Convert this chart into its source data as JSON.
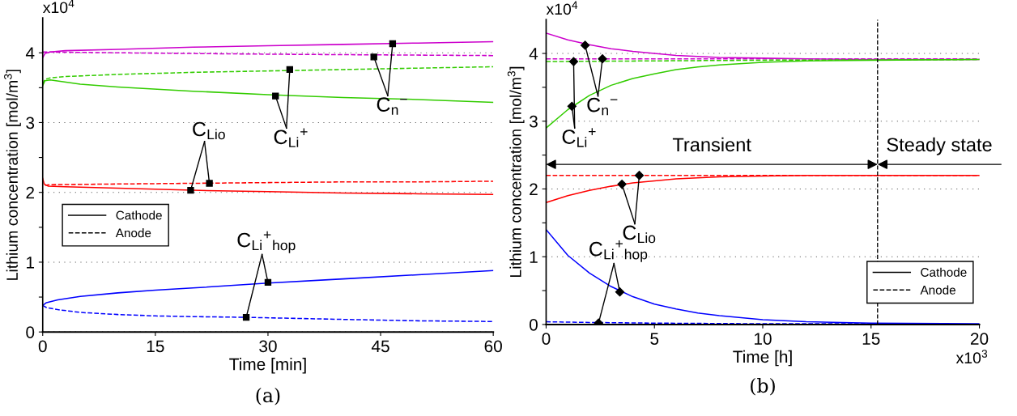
{
  "chart_data": [
    {
      "type": "line",
      "title": "(a)",
      "xlabel": "Time [min]",
      "ylabel": "Lithium concentration [mol/m$^{3}$]",
      "xlim": [
        0,
        60
      ],
      "xticks": [
        0,
        15,
        30,
        45,
        60
      ],
      "ylim": [
        0,
        4.5
      ],
      "yticks": [
        0,
        {
          "value": 0.5,
          "label": null
        },
        1,
        {
          "value": 1.5,
          "label": null
        },
        2,
        {
          "value": 2.5,
          "label": null
        },
        3,
        {
          "value": 3.5,
          "label": null
        },
        4
      ],
      "grid": "y",
      "legend": "center left",
      "annotations": [
        "x10$^{4}$",
        {
          "text": "C$_{Lio}$",
          "x": 19.7,
          "y": 2.03
        },
        {
          "text": "C$_{Li}$$^{+}$",
          "x": 31.0,
          "y": 3.38
        },
        {
          "text": "C$_{n}$$^{−}$",
          "x": 44.1,
          "y": 3.94
        },
        {
          "text": "C$_{Li}$$^{+}$$_{hop}$",
          "x": 27.1,
          "y": 0.21
        }
      ],
      "series": [
        {
          "color": "#cc00cc",
          "line_style": "solid",
          "x": [
            0,
            0.3,
            1,
            3,
            10,
            20,
            30,
            40,
            50,
            60
          ],
          "values": [
            3.93,
            3.99,
            4.01,
            4.03,
            4.05,
            4.08,
            4.1,
            4.12,
            4.14,
            4.16
          ]
        },
        {
          "color": "#cc00cc",
          "line_style": "dashed",
          "x": [
            0,
            1,
            10,
            30,
            60
          ],
          "values": [
            4.01,
            4.01,
            4.0,
            3.98,
            3.96
          ]
        },
        {
          "color": "#33cc00",
          "line_style": "dashed",
          "x": [
            0,
            0.3,
            1,
            3,
            10,
            20,
            30,
            40,
            50,
            60
          ],
          "values": [
            3.55,
            3.62,
            3.64,
            3.66,
            3.69,
            3.72,
            3.74,
            3.76,
            3.78,
            3.8
          ]
        },
        {
          "color": "#33cc00",
          "line_style": "solid",
          "x": [
            0,
            0.3,
            1,
            5,
            10,
            20,
            30,
            40,
            50,
            60
          ],
          "values": [
            3.53,
            3.6,
            3.61,
            3.55,
            3.51,
            3.45,
            3.4,
            3.36,
            3.33,
            3.29
          ]
        },
        {
          "color": "#ff0000",
          "line_style": "solid",
          "x": [
            0,
            0.2,
            0.7,
            3,
            10,
            20,
            30,
            40,
            50,
            60
          ],
          "values": [
            2.2,
            2.12,
            2.09,
            2.08,
            2.06,
            2.03,
            2.01,
            1.99,
            1.98,
            1.97
          ]
        },
        {
          "color": "#ff0000",
          "line_style": "dashed",
          "x": [
            0.3,
            1,
            10,
            20,
            30,
            40,
            50,
            60
          ],
          "values": [
            2.1,
            2.11,
            2.12,
            2.13,
            2.14,
            2.15,
            2.15,
            2.16
          ]
        },
        {
          "color": "#0000ff",
          "line_style": "solid",
          "x": [
            0,
            0.5,
            2,
            5,
            10,
            15,
            20,
            30,
            40,
            50,
            60
          ],
          "values": [
            0.38,
            0.42,
            0.46,
            0.51,
            0.56,
            0.6,
            0.63,
            0.7,
            0.76,
            0.82,
            0.88
          ]
        },
        {
          "color": "#0000ff",
          "line_style": "dashed",
          "x": [
            0,
            0.5,
            2,
            5,
            10,
            15,
            20,
            27,
            40,
            50,
            60
          ],
          "values": [
            0.38,
            0.35,
            0.32,
            0.28,
            0.25,
            0.23,
            0.22,
            0.21,
            0.18,
            0.16,
            0.15
          ]
        },
        {
          "type": "scatter",
          "color": "#000000",
          "marker": "square",
          "x": [
            19.7,
            22.2
          ],
          "values": [
            2.03,
            2.13
          ]
        },
        {
          "type": "scatter",
          "color": "#000000",
          "marker": "square",
          "x": [
            31.0,
            32.9
          ],
          "values": [
            3.38,
            3.76
          ]
        },
        {
          "type": "scatter",
          "color": "#000000",
          "marker": "square",
          "x": [
            44.1,
            46.6
          ],
          "values": [
            3.94,
            4.13
          ]
        },
        {
          "type": "scatter",
          "color": "#000000",
          "marker": "square",
          "x": [
            27.1,
            30.0
          ],
          "values": [
            0.21,
            0.71
          ]
        },
        {
          "name": "Cathode",
          "color": "#000000",
          "line_style": "solid"
        },
        {
          "name": "Anode",
          "color": "#000000",
          "line_style": "dashed"
        }
      ]
    },
    {
      "type": "line",
      "title": "(b)",
      "xlabel": "Time [h]",
      "ylabel": "Lithium concentration [mol/m$^{3}$]",
      "xlim": [
        0,
        20
      ],
      "xticks": [
        0,
        5,
        10,
        15,
        20
      ],
      "ylim": [
        0,
        4.5
      ],
      "yticks": [
        0,
        {
          "value": 0.5,
          "label": null
        },
        1,
        {
          "value": 1.5,
          "label": null
        },
        2,
        {
          "value": 2.5,
          "label": null
        },
        3,
        {
          "value": 3.5,
          "label": null
        },
        4
      ],
      "grid": "y",
      "legend": "lower right",
      "ref_lines": [
        {
          "axis": "x",
          "value": 15.3,
          "color": "#000000",
          "line_style": "dashed"
        }
      ],
      "annotations": [
        "x10$^{4}$",
        "x10$^{3}$",
        "Transient",
        "Steady state",
        {
          "text": "C$_{n}$$^{−}$",
          "x": 1.8,
          "y": 4.12
        },
        {
          "text": "C$_{Li}$$^{+}$",
          "x": 1.27,
          "y": 3.88
        },
        {
          "text": "C$_{Lio}$",
          "x": 3.5,
          "y": 2.07
        },
        {
          "text": "C$_{Li}$$^{+}$$_{hop}$",
          "x": 2.42,
          "y": 0.02
        }
      ],
      "series": [
        {
          "color": "#cc00cc",
          "line_style": "solid",
          "x": [
            0,
            1,
            2,
            3,
            4,
            5,
            6,
            8,
            10,
            12,
            15,
            20
          ],
          "values": [
            4.3,
            4.2,
            4.13,
            4.07,
            4.03,
            4.0,
            3.97,
            3.94,
            3.93,
            3.92,
            3.91,
            3.91
          ]
        },
        {
          "color": "#cc00cc",
          "line_style": "dashed",
          "x": [
            0,
            20
          ],
          "values": [
            3.92,
            3.92
          ]
        },
        {
          "color": "#33cc00",
          "line_style": "dashed",
          "x": [
            0,
            5,
            10,
            20
          ],
          "values": [
            3.88,
            3.89,
            3.9,
            3.91
          ]
        },
        {
          "color": "#33cc00",
          "line_style": "solid",
          "x": [
            0,
            1,
            2,
            3,
            4,
            5,
            6,
            7,
            8,
            10,
            12,
            15,
            20
          ],
          "values": [
            2.9,
            3.17,
            3.38,
            3.53,
            3.63,
            3.7,
            3.76,
            3.8,
            3.83,
            3.87,
            3.89,
            3.9,
            3.91
          ]
        },
        {
          "color": "#ff0000",
          "line_style": "solid",
          "x": [
            0,
            1,
            2,
            3,
            4,
            5,
            6,
            8,
            10,
            12,
            15,
            20
          ],
          "values": [
            1.8,
            1.9,
            1.98,
            2.04,
            2.09,
            2.12,
            2.15,
            2.18,
            2.19,
            2.2,
            2.2,
            2.2
          ]
        },
        {
          "color": "#ff0000",
          "line_style": "dashed",
          "x": [
            0,
            20
          ],
          "values": [
            2.2,
            2.2
          ]
        },
        {
          "color": "#0000ff",
          "line_style": "solid",
          "x": [
            0,
            1,
            2,
            3,
            4,
            5,
            6,
            7,
            8,
            10,
            12,
            15,
            20
          ],
          "values": [
            1.4,
            1.02,
            0.76,
            0.56,
            0.41,
            0.3,
            0.23,
            0.17,
            0.13,
            0.07,
            0.04,
            0.02,
            0.01
          ]
        },
        {
          "color": "#0000ff",
          "line_style": "dashed",
          "x": [
            0,
            2,
            5,
            10,
            15,
            20
          ],
          "values": [
            0.04,
            0.03,
            0.02,
            0.01,
            0.01,
            0.0
          ]
        },
        {
          "type": "scatter",
          "color": "#000000",
          "marker": "diamond",
          "x": [
            1.8,
            2.6
          ],
          "values": [
            4.12,
            3.92
          ]
        },
        {
          "type": "scatter",
          "color": "#000000",
          "marker": "diamond",
          "x": [
            1.27,
            1.19
          ],
          "values": [
            3.88,
            3.22
          ]
        },
        {
          "type": "scatter",
          "color": "#000000",
          "marker": "diamond",
          "x": [
            3.5,
            4.3
          ],
          "values": [
            2.07,
            2.2
          ]
        },
        {
          "type": "scatter",
          "color": "#000000",
          "marker": "diamond",
          "x": [
            2.42,
            3.4
          ],
          "values": [
            0.02,
            0.48
          ]
        },
        {
          "name": "Cathode",
          "color": "#000000",
          "line_style": "solid"
        },
        {
          "name": "Anode",
          "color": "#000000",
          "line_style": "dashed"
        }
      ]
    }
  ]
}
